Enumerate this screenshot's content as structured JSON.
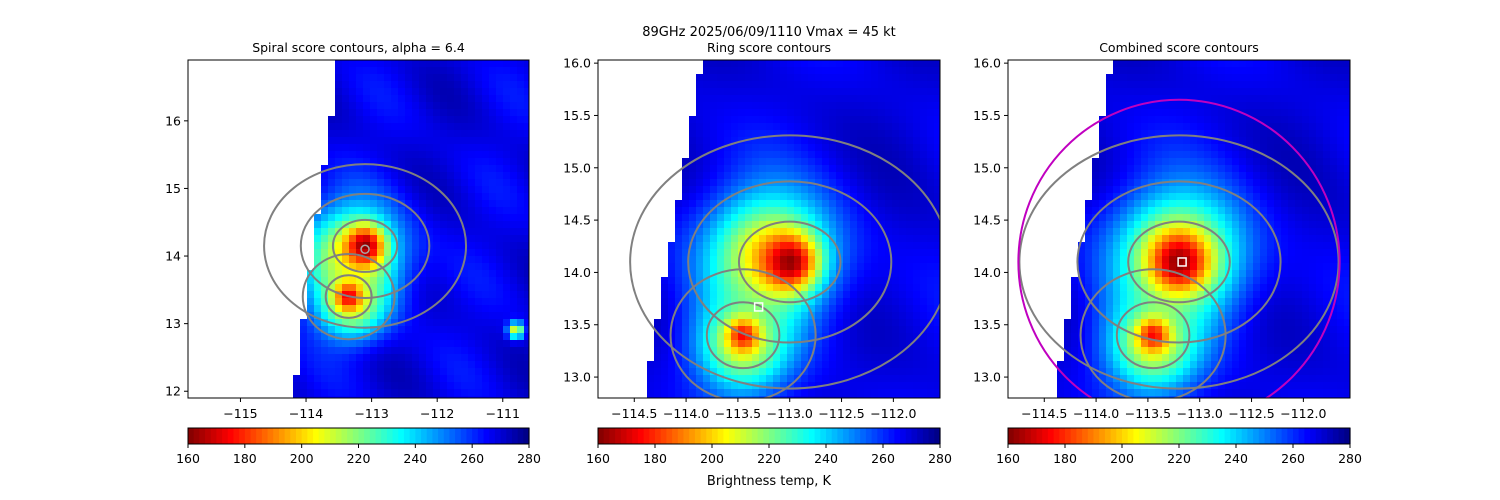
{
  "suptitle": {
    "line1": "89GHz  2025/06/09/1110    Vmax = 45 kt"
  },
  "colormap": "jet",
  "chart_data": [
    {
      "type": "heatmap",
      "title": "Spiral score contours, alpha =  6.4",
      "xlim": [
        -115.8,
        -110.6
      ],
      "ylim": [
        11.9,
        16.9
      ],
      "xticks": [
        -115,
        -114,
        -113,
        -112,
        -111
      ],
      "xtick_labels": [
        "−115",
        "−114",
        "−113",
        "−112",
        "−111"
      ],
      "yticks": [
        12,
        13,
        14,
        15,
        16
      ],
      "ytick_labels": [
        "12",
        "13",
        "14",
        "15",
        "16"
      ],
      "swath_edge": [
        [
          -114.2,
          11.9
        ],
        [
          -113.5,
          16.9
        ]
      ],
      "hotspots": [
        {
          "lon": -113.1,
          "lat": 14.15,
          "tb": 162,
          "r": 0.28
        },
        {
          "lon": -113.35,
          "lat": 13.4,
          "tb": 172,
          "r": 0.2
        }
      ],
      "warm_blobs": [
        {
          "lon": -113.3,
          "lat": 14.0,
          "r": 0.75,
          "tb": 205
        },
        {
          "lon": -113.3,
          "lat": 13.3,
          "r": 0.5,
          "tb": 210
        },
        {
          "lon": -110.8,
          "lat": 12.9,
          "r": 0.12,
          "tb": 205
        }
      ],
      "marker": {
        "lon": -113.1,
        "lat": 14.1,
        "shape": "circle",
        "color": "#aaaaaa"
      },
      "ring": null,
      "colorbar": {
        "vmin": 160,
        "vmax": 280,
        "ticks": [
          160,
          180,
          200,
          220,
          240,
          260,
          280
        ],
        "label": ""
      },
      "contour_color": "#808080"
    },
    {
      "type": "heatmap",
      "title": "Ring score contours",
      "xlim": [
        -114.85,
        -111.55
      ],
      "ylim": [
        12.8,
        16.03
      ],
      "xticks": [
        -114.5,
        -114.0,
        -113.5,
        -113.0,
        -112.5,
        -112.0
      ],
      "xtick_labels": [
        "−114.5",
        "−114.0",
        "−113.5",
        "−113.0",
        "−112.5",
        "−112.0"
      ],
      "yticks": [
        13.0,
        13.5,
        14.0,
        14.5,
        15.0,
        15.5,
        16.0
      ],
      "ytick_labels": [
        "13.0",
        "13.5",
        "14.0",
        "14.5",
        "15.0",
        "15.5",
        "16.0"
      ],
      "swath_edge": [
        [
          -114.4,
          12.8
        ],
        [
          -113.85,
          16.03
        ]
      ],
      "hotspots": [
        {
          "lon": -113.0,
          "lat": 14.1,
          "tb": 162,
          "r": 0.25
        },
        {
          "lon": -113.45,
          "lat": 13.4,
          "tb": 175,
          "r": 0.15
        }
      ],
      "warm_blobs": [
        {
          "lon": -113.2,
          "lat": 14.15,
          "r": 0.6,
          "tb": 200
        },
        {
          "lon": -113.45,
          "lat": 13.3,
          "r": 0.45,
          "tb": 210
        }
      ],
      "marker": {
        "lon": -113.3,
        "lat": 13.67,
        "shape": "square",
        "color": "#ffffff"
      },
      "ring": null,
      "colorbar": {
        "vmin": 160,
        "vmax": 280,
        "ticks": [
          160,
          180,
          200,
          220,
          240,
          260,
          280
        ],
        "label": "Brightness temp, K"
      },
      "contour_color": "#808080"
    },
    {
      "type": "heatmap",
      "title": "Combined score contours",
      "xlim": [
        -114.85,
        -111.55
      ],
      "ylim": [
        12.8,
        16.03
      ],
      "xticks": [
        -114.5,
        -114.0,
        -113.5,
        -113.0,
        -112.5,
        -112.0
      ],
      "xtick_labels": [
        "−114.5",
        "−114.0",
        "−113.5",
        "−113.0",
        "−112.5",
        "−112.0"
      ],
      "yticks": [
        13.0,
        13.5,
        14.0,
        14.5,
        15.0,
        15.5,
        16.0
      ],
      "ytick_labels": [
        "13.0",
        "13.5",
        "14.0",
        "14.5",
        "15.0",
        "15.5",
        "16.0"
      ],
      "swath_edge": [
        [
          -114.4,
          12.8
        ],
        [
          -113.85,
          16.03
        ]
      ],
      "hotspots": [
        {
          "lon": -113.2,
          "lat": 14.1,
          "tb": 162,
          "r": 0.25
        },
        {
          "lon": -113.45,
          "lat": 13.4,
          "tb": 175,
          "r": 0.15
        }
      ],
      "warm_blobs": [
        {
          "lon": -113.2,
          "lat": 14.15,
          "r": 0.6,
          "tb": 200
        },
        {
          "lon": -113.45,
          "lat": 13.3,
          "r": 0.45,
          "tb": 210
        }
      ],
      "marker": {
        "lon": -113.17,
        "lat": 14.1,
        "shape": "square",
        "color": "#ffffff"
      },
      "ring": {
        "lon": -113.2,
        "lat": 14.1,
        "r_deg": 1.55,
        "color": "#c000c0"
      },
      "colorbar": {
        "vmin": 160,
        "vmax": 280,
        "ticks": [
          160,
          180,
          200,
          220,
          240,
          260,
          280
        ],
        "label": ""
      },
      "contour_color": "#808080"
    }
  ]
}
